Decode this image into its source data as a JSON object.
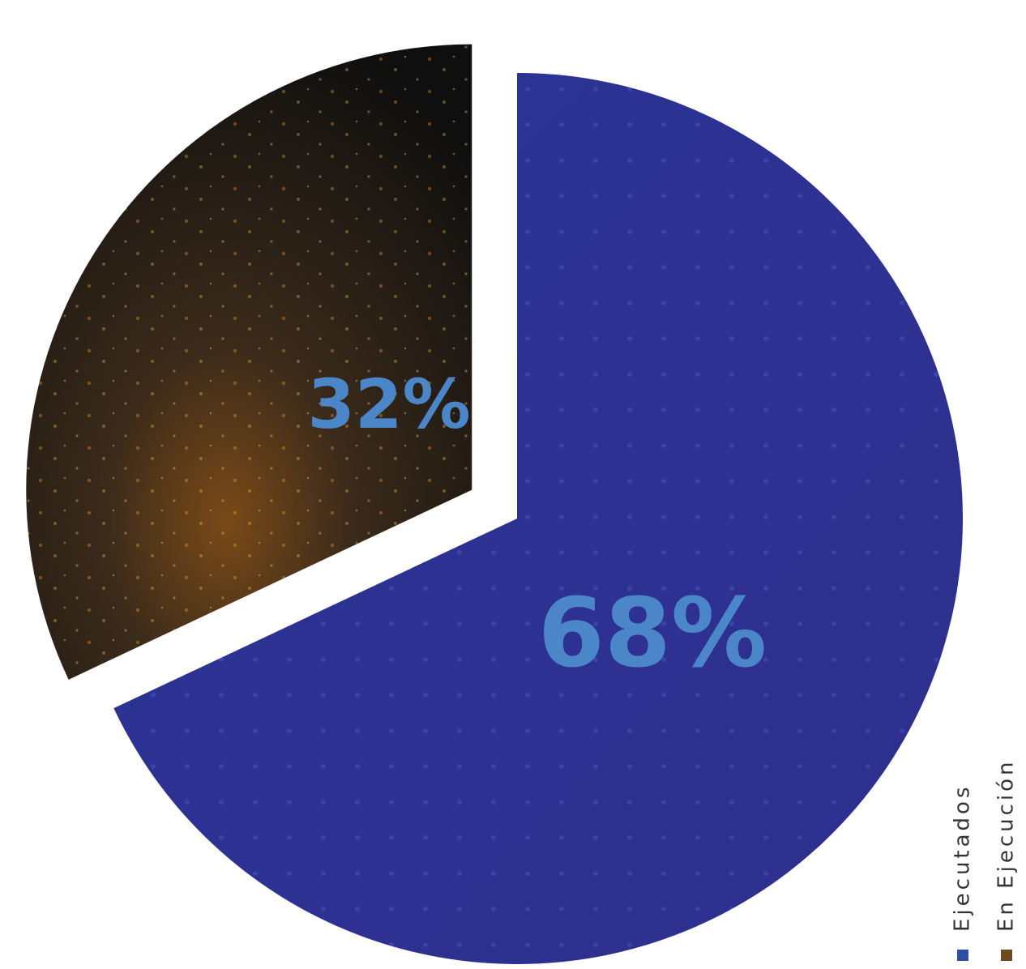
{
  "chart_data": {
    "type": "pie",
    "categories": [
      "Ejecutados",
      "En Ejecución"
    ],
    "values": [
      68,
      32
    ],
    "value_labels": [
      "68%",
      "32%"
    ],
    "colors": [
      "#2e3192",
      "#3b2c1c"
    ],
    "legend": "right"
  }
}
